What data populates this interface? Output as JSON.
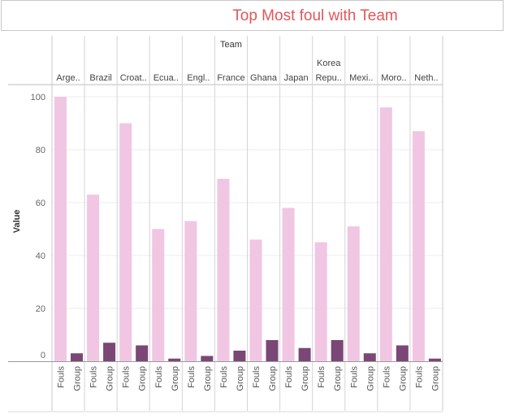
{
  "chart_data": {
    "type": "bar",
    "title": "Top Most foul  with Team",
    "column_header": "Team",
    "ylabel": "Value",
    "ylim": [
      0,
      100
    ],
    "yticks": [
      0,
      20,
      40,
      60,
      80,
      100
    ],
    "teams": [
      {
        "label": "Arge..",
        "fouls": 100,
        "group": 3
      },
      {
        "label": "Brazil",
        "fouls": 63,
        "group": 7
      },
      {
        "label": "Croat..",
        "fouls": 90,
        "group": 6
      },
      {
        "label": "Ecua..",
        "fouls": 50,
        "group": 1
      },
      {
        "label": "Engl..",
        "fouls": 53,
        "group": 2
      },
      {
        "label": "France",
        "fouls": 69,
        "group": 4
      },
      {
        "label": "Ghana",
        "fouls": 46,
        "group": 8
      },
      {
        "label": "Japan",
        "fouls": 58,
        "group": 5
      },
      {
        "label": "Korea Repu..",
        "fouls": 45,
        "group": 8
      },
      {
        "label": "Mexi..",
        "fouls": 51,
        "group": 3
      },
      {
        "label": "Moro..",
        "fouls": 96,
        "group": 6
      },
      {
        "label": "Neth..",
        "fouls": 87,
        "group": 1
      }
    ],
    "measures": [
      "Fouls",
      "Group"
    ],
    "colors": {
      "Fouls": "#f0c6e3",
      "Group": "#7a4776"
    },
    "grid": true
  }
}
